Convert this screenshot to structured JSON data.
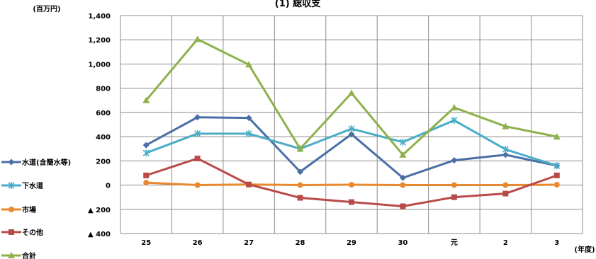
{
  "chart_data": {
    "type": "line",
    "title": "(1) 総収支",
    "ylabel": "(百万円)",
    "xlabel": "(年度)",
    "categories": [
      "25",
      "26",
      "27",
      "28",
      "29",
      "30",
      "元",
      "2",
      "3"
    ],
    "ylim": [
      -400,
      1400
    ],
    "ytick_labels": [
      "1,400",
      "1,200",
      "1,000",
      "800",
      "600",
      "400",
      "200",
      "0",
      "▲ 200",
      "▲ 400"
    ],
    "ytick_values": [
      1400,
      1200,
      1000,
      800,
      600,
      400,
      200,
      0,
      -200,
      -400
    ],
    "grid": true,
    "legend_position": "left",
    "series": [
      {
        "name": "水道(含簡水等)",
        "color": "#4a6fa5",
        "marker": "diamond",
        "values": [
          330,
          560,
          555,
          110,
          420,
          60,
          205,
          250,
          160
        ]
      },
      {
        "name": "下水道",
        "color": "#4aacc6",
        "marker": "x",
        "values": [
          265,
          425,
          425,
          300,
          465,
          355,
          535,
          295,
          160
        ]
      },
      {
        "name": "市場",
        "color": "#e8892f",
        "marker": "circle",
        "values": [
          20,
          0,
          5,
          0,
          3,
          0,
          0,
          0,
          3
        ]
      },
      {
        "name": "その他",
        "color": "#b84b48",
        "marker": "square",
        "values": [
          80,
          220,
          5,
          -105,
          -140,
          -175,
          -100,
          -70,
          80
        ]
      },
      {
        "name": "合計",
        "color": "#8eb14c",
        "marker": "triangle",
        "values": [
          700,
          1205,
          995,
          300,
          760,
          250,
          640,
          485,
          400
        ]
      }
    ]
  }
}
